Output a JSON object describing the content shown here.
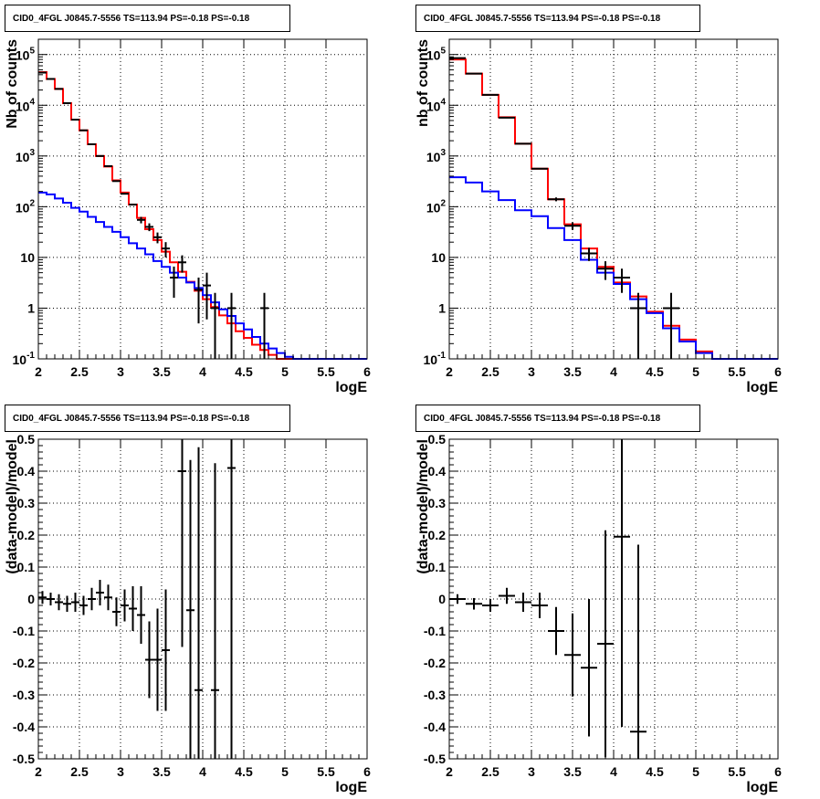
{
  "chart_data": [
    {
      "type": "histogram",
      "title": "CID0_4FGL J0845.7-5556 TS=113.94 PS=-0.18 PS=-0.18",
      "xlabel": "logE",
      "ylabel": "Nb of counts",
      "xlim": [
        2,
        6
      ],
      "ylim": [
        0.1,
        200000
      ],
      "yscale": "log",
      "grid": true,
      "xticks": [
        "2",
        "2.5",
        "3",
        "3.5",
        "4",
        "4.5",
        "5",
        "5.5",
        "6"
      ],
      "yticks": [
        [
          "0.1",
          "10^-1"
        ],
        [
          "1",
          "1"
        ],
        [
          "10",
          "10"
        ],
        [
          "100",
          "10^2"
        ],
        [
          "1000",
          "10^3"
        ],
        [
          "10000",
          "10^4"
        ],
        [
          "100000",
          "10^5"
        ]
      ],
      "bin_edges": [
        2.0,
        2.1,
        2.2,
        2.3,
        2.4,
        2.5,
        2.6,
        2.7,
        2.8,
        2.9,
        3.0,
        3.1,
        3.2,
        3.3,
        3.4,
        3.5,
        3.6,
        3.7,
        3.8,
        3.9,
        4.0,
        4.1,
        4.2,
        4.3,
        4.4,
        4.5,
        4.6,
        4.7,
        4.8,
        4.9,
        5.0,
        5.1,
        5.2,
        5.3,
        5.4,
        5.5,
        5.6,
        5.7,
        5.8,
        5.9,
        6.0
      ],
      "series": [
        {
          "color": "#ff0000",
          "values": [
            45000,
            33000,
            21000,
            11000,
            5200,
            3200,
            1700,
            1000,
            620,
            330,
            190,
            110,
            60,
            36,
            22,
            13,
            8,
            5.2,
            3.3,
            2.2,
            1.5,
            1.05,
            0.72,
            0.5,
            0.35,
            0.26,
            0.19,
            0.15,
            0.12,
            0.1,
            0.1,
            0.1,
            0.1,
            0.1,
            0.1,
            0.1,
            0.1,
            0.1,
            0.1,
            0.1
          ]
        },
        {
          "color": "#0000ff",
          "values": [
            190,
            175,
            145,
            120,
            95,
            80,
            63,
            50,
            40,
            32,
            25,
            19,
            15,
            11.5,
            8.5,
            6.5,
            5,
            4,
            3.2,
            2.5,
            1.8,
            1.3,
            0.95,
            0.7,
            0.5,
            0.38,
            0.27,
            0.2,
            0.16,
            0.13,
            0.11,
            0.1,
            0.1,
            0.1,
            0.1,
            0.1,
            0.1,
            0.1,
            0.1,
            0.1
          ]
        }
      ],
      "data_points": [
        {
          "x": 2.05,
          "y": 44000,
          "yerr": [
            0,
            0
          ]
        },
        {
          "x": 2.15,
          "y": 33000,
          "yerr": [
            0,
            0
          ]
        },
        {
          "x": 2.25,
          "y": 21000,
          "yerr": [
            0,
            0
          ]
        },
        {
          "x": 2.35,
          "y": 11000,
          "yerr": [
            0,
            0
          ]
        },
        {
          "x": 2.45,
          "y": 5200,
          "yerr": [
            0,
            0
          ]
        },
        {
          "x": 2.55,
          "y": 3200,
          "yerr": [
            0,
            0
          ]
        },
        {
          "x": 2.65,
          "y": 1700,
          "yerr": [
            0,
            0
          ]
        },
        {
          "x": 2.75,
          "y": 1000,
          "yerr": [
            0,
            0
          ]
        },
        {
          "x": 2.85,
          "y": 630,
          "yerr": [
            0,
            0
          ]
        },
        {
          "x": 2.95,
          "y": 320,
          "yerr": [
            0,
            0
          ]
        },
        {
          "x": 3.05,
          "y": 180,
          "yerr": [
            0,
            0
          ]
        },
        {
          "x": 3.15,
          "y": 110,
          "yerr": [
            0,
            0
          ]
        },
        {
          "x": 3.25,
          "y": 55,
          "yerr": [
            8,
            8
          ]
        },
        {
          "x": 3.35,
          "y": 40,
          "yerr": [
            7,
            7
          ]
        },
        {
          "x": 3.45,
          "y": 25,
          "yerr": [
            6,
            6
          ]
        },
        {
          "x": 3.55,
          "y": 15,
          "yerr": [
            5,
            5
          ]
        },
        {
          "x": 3.65,
          "y": 4,
          "yerr": [
            2.4,
            2.6
          ]
        },
        {
          "x": 3.75,
          "y": 8,
          "yerr": [
            3,
            3
          ]
        },
        {
          "x": 3.95,
          "y": 2.3,
          "yerr": [
            1.8,
            1.7
          ]
        },
        {
          "x": 4.05,
          "y": 2.8,
          "yerr": [
            2.2,
            2.2
          ]
        },
        {
          "x": 4.15,
          "y": 1,
          "yerr": [
            0.999,
            1
          ]
        },
        {
          "x": 4.35,
          "y": 1,
          "yerr": [
            0.999,
            1
          ]
        },
        {
          "x": 4.75,
          "y": 1,
          "yerr": [
            0.999,
            1
          ]
        }
      ]
    },
    {
      "type": "histogram",
      "title": "CID0_4FGL J0845.7-5556 TS=113.94 PS=-0.18 PS=-0.18",
      "xlabel": "logE",
      "ylabel": "nb of counts",
      "xlim": [
        2,
        6
      ],
      "ylim": [
        0.1,
        200000
      ],
      "yscale": "log",
      "grid": true,
      "xticks": [
        "2",
        "2.5",
        "3",
        "3.5",
        "4",
        "4.5",
        "5",
        "5.5",
        "6"
      ],
      "yticks": [
        [
          "0.1",
          "10^-1"
        ],
        [
          "1",
          "1"
        ],
        [
          "10",
          "10"
        ],
        [
          "100",
          "10^2"
        ],
        [
          "1000",
          "10^3"
        ],
        [
          "10000",
          "10^4"
        ],
        [
          "100000",
          "10^5"
        ]
      ],
      "bin_edges": [
        2.0,
        2.2,
        2.4,
        2.6,
        2.8,
        3.0,
        3.2,
        3.4,
        3.6,
        3.8,
        4.0,
        4.2,
        4.4,
        4.6,
        4.8,
        5.0,
        5.2,
        5.4,
        5.6,
        5.8,
        6.0
      ],
      "series": [
        {
          "color": "#ff0000",
          "values": [
            80000,
            42000,
            16000,
            5800,
            1750,
            560,
            140,
            45,
            15,
            6.5,
            3.2,
            1.7,
            0.85,
            0.45,
            0.24,
            0.14,
            0.1,
            0.1,
            0.1,
            0.1
          ]
        },
        {
          "color": "#0000ff",
          "values": [
            380,
            300,
            200,
            135,
            85,
            65,
            38,
            22,
            9,
            5,
            3,
            1.5,
            0.8,
            0.4,
            0.22,
            0.13,
            0.1,
            0.1,
            0.1,
            0.1
          ]
        }
      ],
      "data_points": [
        {
          "x": 2.1,
          "y": 85000,
          "yerr": [
            0,
            0
          ]
        },
        {
          "x": 2.3,
          "y": 42000,
          "yerr": [
            0,
            0
          ]
        },
        {
          "x": 2.5,
          "y": 16000,
          "yerr": [
            0,
            0
          ]
        },
        {
          "x": 2.7,
          "y": 5700,
          "yerr": [
            0,
            0
          ]
        },
        {
          "x": 2.9,
          "y": 1750,
          "yerr": [
            0,
            0
          ]
        },
        {
          "x": 3.1,
          "y": 560,
          "yerr": [
            0,
            0
          ]
        },
        {
          "x": 3.3,
          "y": 140,
          "yerr": [
            12,
            12
          ]
        },
        {
          "x": 3.5,
          "y": 42,
          "yerr": [
            7,
            7
          ]
        },
        {
          "x": 3.7,
          "y": 12,
          "yerr": [
            3.5,
            3.5
          ]
        },
        {
          "x": 3.9,
          "y": 6,
          "yerr": [
            2.4,
            2.4
          ]
        },
        {
          "x": 4.1,
          "y": 4,
          "yerr": [
            2,
            2
          ]
        },
        {
          "x": 4.3,
          "y": 1,
          "yerr": [
            0.999,
            1
          ]
        },
        {
          "x": 4.7,
          "y": 1,
          "yerr": [
            0.999,
            1
          ]
        }
      ]
    },
    {
      "type": "scatter",
      "title": "CID0_4FGL J0845.7-5556 TS=113.94 PS=-0.18 PS=-0.18",
      "xlabel": "logE",
      "ylabel": "(data-model)/model",
      "xlim": [
        2,
        6
      ],
      "ylim": [
        -0.5,
        0.5
      ],
      "grid": true,
      "xticks": [
        "2",
        "2.5",
        "3",
        "3.5",
        "4",
        "4.5",
        "5",
        "5.5",
        "6"
      ],
      "yticks": [
        "-0.5",
        "-0.4",
        "-0.3",
        "-0.2",
        "-0.1",
        "0",
        "0.1",
        "0.2",
        "0.3",
        "0.4",
        "0.5"
      ],
      "xerr": 0.05,
      "points": [
        {
          "x": 2.05,
          "y": 0.005,
          "yerr": 0.02
        },
        {
          "x": 2.15,
          "y": 0.0,
          "yerr": 0.02
        },
        {
          "x": 2.25,
          "y": -0.01,
          "yerr": 0.025
        },
        {
          "x": 2.35,
          "y": -0.015,
          "yerr": 0.025
        },
        {
          "x": 2.45,
          "y": -0.01,
          "yerr": 0.03
        },
        {
          "x": 2.55,
          "y": -0.02,
          "yerr": 0.03
        },
        {
          "x": 2.65,
          "y": 0.0,
          "yerr": 0.035
        },
        {
          "x": 2.75,
          "y": 0.02,
          "yerr": 0.04
        },
        {
          "x": 2.85,
          "y": 0.005,
          "yerr": 0.04
        },
        {
          "x": 2.95,
          "y": -0.04,
          "yerr": 0.045
        },
        {
          "x": 3.05,
          "y": -0.02,
          "yerr": 0.05
        },
        {
          "x": 3.15,
          "y": -0.03,
          "yerr": 0.07
        },
        {
          "x": 3.25,
          "y": -0.05,
          "yerr": 0.09
        },
        {
          "x": 3.35,
          "y": -0.19,
          "yerr": 0.12
        },
        {
          "x": 3.45,
          "y": -0.19,
          "yerr": 0.16
        },
        {
          "x": 3.55,
          "y": -0.16,
          "yerr": 0.19
        },
        {
          "x": 3.75,
          "y": 0.4,
          "yerr": 0.55
        },
        {
          "x": 3.85,
          "y": -0.035,
          "yerr": 0.47
        },
        {
          "x": 3.95,
          "y": -0.285,
          "yerr": 0.76
        },
        {
          "x": 4.15,
          "y": -0.285,
          "yerr": 0.71
        },
        {
          "x": 4.35,
          "y": 0.41,
          "yerr": 1.41
        }
      ]
    },
    {
      "type": "scatter",
      "title": "CID0_4FGL J0845.7-5556 TS=113.94 PS=-0.18 PS=-0.18",
      "xlabel": "logE",
      "ylabel": "(data-model)/model",
      "xlim": [
        2,
        6
      ],
      "ylim": [
        -0.5,
        0.5
      ],
      "grid": true,
      "xticks": [
        "2",
        "2.5",
        "3",
        "3.5",
        "4",
        "4.5",
        "5",
        "5.5",
        "6"
      ],
      "yticks": [
        "-0.5",
        "-0.4",
        "-0.3",
        "-0.2",
        "-0.1",
        "0",
        "0.1",
        "0.2",
        "0.3",
        "0.4",
        "0.5"
      ],
      "xerr": 0.1,
      "points": [
        {
          "x": 2.1,
          "y": 0.0,
          "yerr": 0.015
        },
        {
          "x": 2.3,
          "y": -0.015,
          "yerr": 0.018
        },
        {
          "x": 2.5,
          "y": -0.02,
          "yerr": 0.02
        },
        {
          "x": 2.7,
          "y": 0.01,
          "yerr": 0.025
        },
        {
          "x": 2.9,
          "y": -0.01,
          "yerr": 0.03
        },
        {
          "x": 3.1,
          "y": -0.02,
          "yerr": 0.04
        },
        {
          "x": 3.3,
          "y": -0.1,
          "yerr": 0.075
        },
        {
          "x": 3.5,
          "y": -0.175,
          "yerr": 0.13
        },
        {
          "x": 3.7,
          "y": -0.215,
          "yerr": 0.215
        },
        {
          "x": 3.9,
          "y": -0.14,
          "yerr": 0.355
        },
        {
          "x": 4.1,
          "y": 0.195,
          "yerr": 0.595
        },
        {
          "x": 4.3,
          "y": -0.415,
          "yerr": 0.585
        }
      ]
    }
  ]
}
